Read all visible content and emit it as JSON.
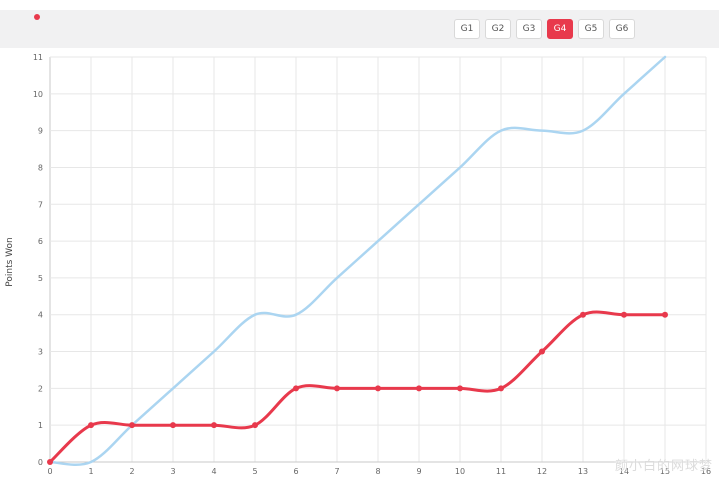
{
  "header": {
    "accent": "#e8394c",
    "dot_color": "#e8394c",
    "buttons": [
      {
        "label": "G1",
        "active": false
      },
      {
        "label": "G2",
        "active": false
      },
      {
        "label": "G3",
        "active": false
      },
      {
        "label": "G4",
        "active": true
      },
      {
        "label": "G5",
        "active": false
      },
      {
        "label": "G6",
        "active": false
      }
    ]
  },
  "chart_data": {
    "type": "line",
    "title": "",
    "xlabel": "",
    "ylabel": "Points Won",
    "x": [
      0,
      1,
      2,
      3,
      4,
      5,
      6,
      7,
      8,
      9,
      10,
      11,
      12,
      13,
      14,
      15
    ],
    "series": [
      {
        "name": "blue",
        "color": "#abd5f1",
        "line_width": 2.5,
        "markers": false,
        "values": [
          0,
          0,
          1,
          2,
          3,
          4,
          4,
          5,
          6,
          7,
          8,
          9,
          9,
          9,
          10,
          11
        ]
      },
      {
        "name": "red",
        "color": "#e8394c",
        "line_width": 3,
        "markers": true,
        "values": [
          0,
          1,
          1,
          1,
          1,
          1,
          2,
          2,
          2,
          2,
          2,
          2,
          3,
          4,
          4,
          4
        ]
      }
    ],
    "xlim": [
      0,
      16
    ],
    "ylim": [
      0,
      11
    ],
    "x_ticks": [
      0,
      1,
      2,
      3,
      4,
      5,
      6,
      7,
      8,
      9,
      10,
      11,
      12,
      13,
      14,
      15,
      16
    ],
    "y_ticks": [
      0,
      1,
      2,
      3,
      4,
      5,
      6,
      7,
      8,
      9,
      10,
      11
    ],
    "grid": true,
    "legend": "none",
    "grid_color": "#e7e7e7",
    "axis_color": "#c9c9c9",
    "tick_color": "#666666"
  },
  "watermark": "颜小白的网球梦"
}
